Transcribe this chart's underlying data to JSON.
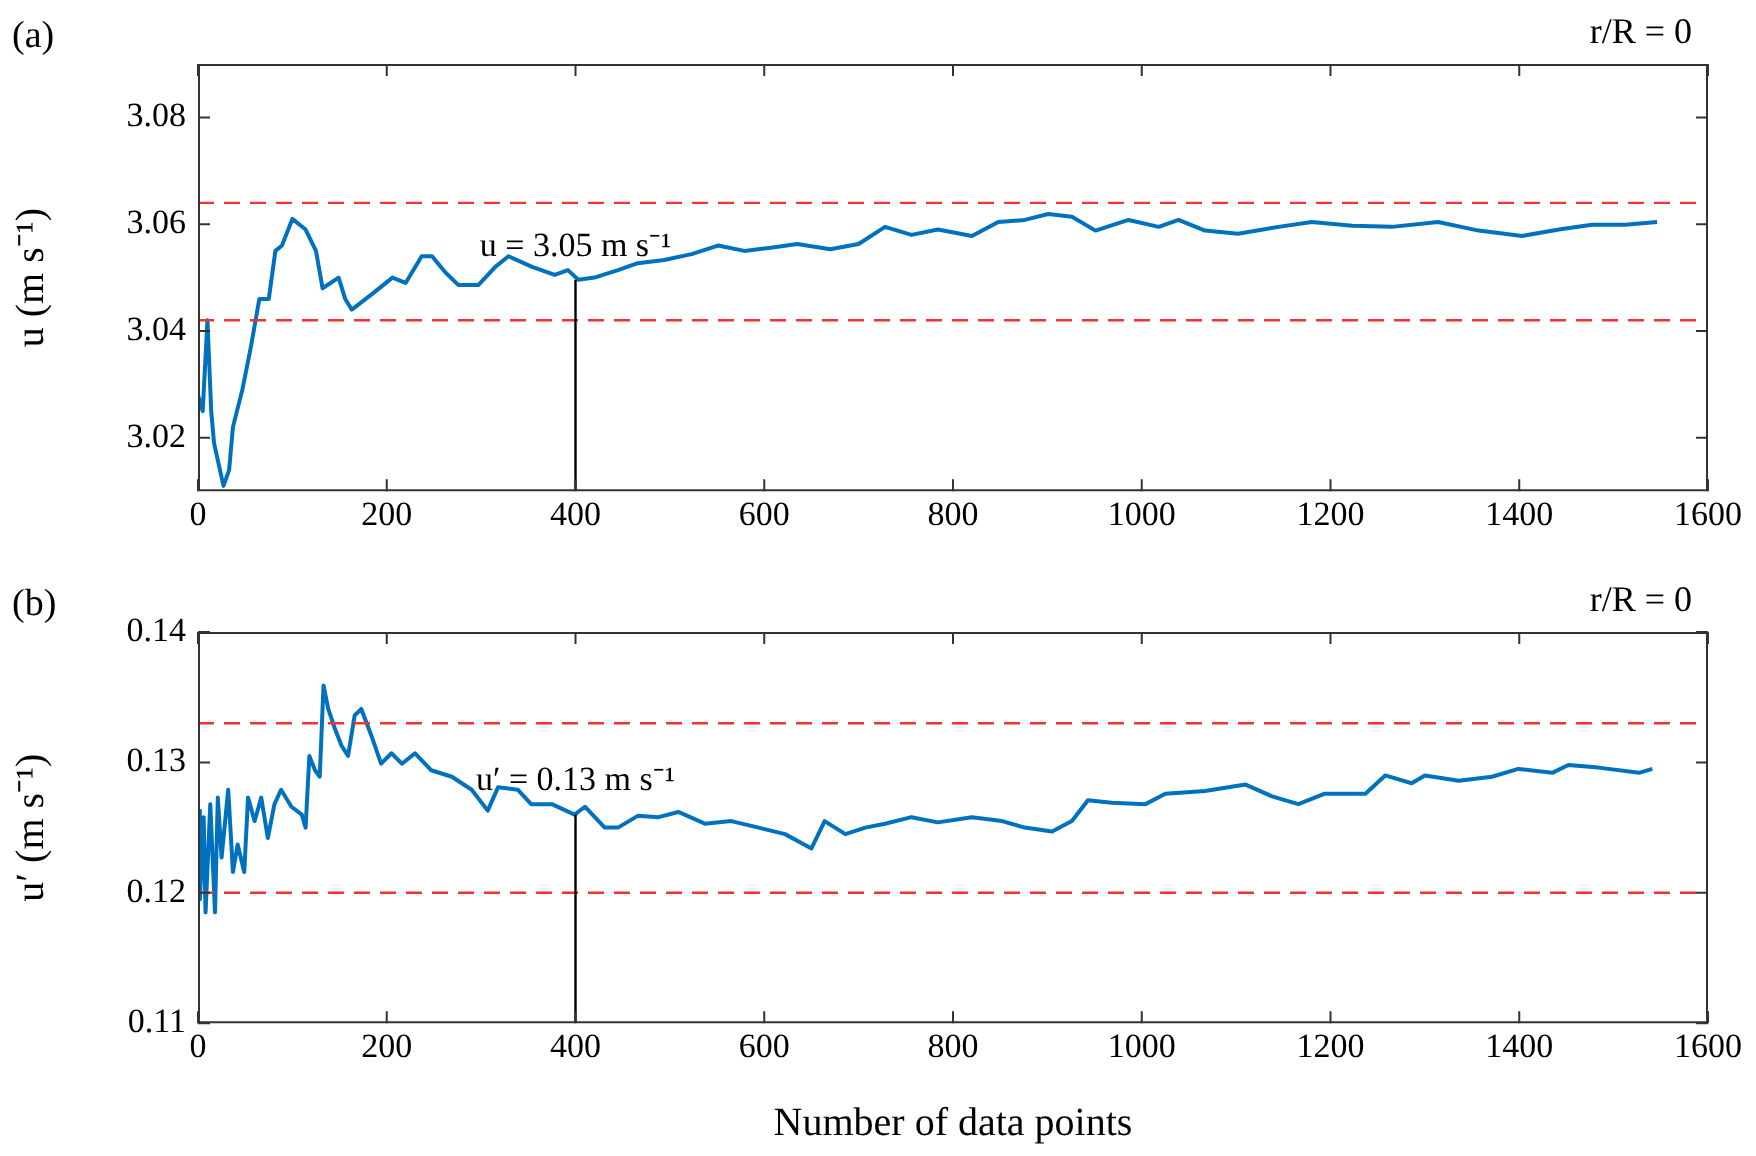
{
  "chart_data": [
    {
      "type": "line",
      "title": "(a)",
      "subtitle": "r/R = 0",
      "ylabel": "u (m s⁻¹)",
      "xlim": [
        0,
        1600
      ],
      "xticks": [
        0,
        200,
        400,
        600,
        800,
        1000,
        1200,
        1400,
        1600
      ],
      "ylim": [
        3.01,
        3.09
      ],
      "yticks": [
        3.02,
        3.04,
        3.06,
        3.08
      ],
      "grid": false,
      "legend": false,
      "marker": "none",
      "line_style": "solid",
      "x": [
        0,
        5,
        10,
        14,
        17,
        22,
        27,
        33,
        37,
        47,
        56,
        65,
        75,
        82,
        89,
        100,
        114,
        125,
        132,
        149,
        156,
        163,
        174,
        185,
        206,
        220,
        237,
        248,
        262,
        276,
        297,
        315,
        329,
        354,
        378,
        392,
        403,
        420,
        445,
        466,
        494,
        523,
        551,
        579,
        607,
        635,
        670,
        700,
        728,
        756,
        784,
        820,
        848,
        876,
        901,
        926,
        951,
        986,
        1018,
        1039,
        1067,
        1102,
        1145,
        1180,
        1223,
        1265,
        1314,
        1357,
        1403,
        1442,
        1477,
        1512,
        1546
      ],
      "series": [
        {
          "color": "#0072bd",
          "values": [
            3.028,
            3.025,
            3.042,
            3.025,
            3.019,
            3.015,
            3.011,
            3.014,
            3.022,
            3.029,
            3.037,
            3.046,
            3.046,
            3.055,
            3.056,
            3.061,
            3.059,
            3.055,
            3.048,
            3.05,
            3.046,
            3.044,
            3.0455,
            3.047,
            3.05,
            3.049,
            3.054,
            3.054,
            3.051,
            3.0486,
            3.0486,
            3.052,
            3.054,
            3.052,
            3.0505,
            3.0514,
            3.0496,
            3.05,
            3.0514,
            3.0527,
            3.0533,
            3.0544,
            3.056,
            3.055,
            3.0556,
            3.0563,
            3.0553,
            3.0563,
            3.0595,
            3.058,
            3.059,
            3.0578,
            3.0604,
            3.0608,
            3.0619,
            3.0614,
            3.0588,
            3.0608,
            3.0595,
            3.0608,
            3.0588,
            3.0582,
            3.0595,
            3.0604,
            3.0597,
            3.0595,
            3.0604,
            3.0588,
            3.0578,
            3.059,
            3.0599,
            3.0599,
            3.0604
          ]
        }
      ],
      "ref_lines": [
        {
          "axis": "y",
          "value": 3.064,
          "color": "#ee3333",
          "line_style": "dashed"
        },
        {
          "axis": "y",
          "value": 3.042,
          "color": "#ee3333",
          "line_style": "dashed"
        },
        {
          "axis": "x",
          "value": 400,
          "color": "#000000",
          "line_style": "solid"
        }
      ],
      "annotations": [
        {
          "text": "u = 3.05 m s⁻¹",
          "x": 400,
          "y": 3.0496
        }
      ]
    },
    {
      "type": "line",
      "title": "(b)",
      "subtitle": "r/R = 0",
      "xlabel": "Number of data points",
      "ylabel": "u′ (m s⁻¹)",
      "xlim": [
        0,
        1600
      ],
      "xticks": [
        0,
        200,
        400,
        600,
        800,
        1000,
        1200,
        1400,
        1600
      ],
      "ylim": [
        0.11,
        0.14
      ],
      "yticks": [
        0.11,
        0.12,
        0.13,
        0.14
      ],
      "grid": false,
      "legend": false,
      "marker": "none",
      "line_style": "solid",
      "x": [
        0,
        2,
        6,
        8,
        13,
        18,
        21,
        25,
        32,
        37,
        42,
        49,
        53,
        60,
        67,
        74,
        81,
        88,
        99,
        110,
        114,
        118,
        124,
        129,
        133,
        138,
        145,
        152,
        159,
        166,
        173,
        184,
        194,
        205,
        216,
        230,
        247,
        269,
        290,
        307,
        318,
        339,
        353,
        375,
        399,
        410,
        431,
        445,
        466,
        488,
        509,
        537,
        565,
        594,
        622,
        650,
        664,
        686,
        707,
        728,
        756,
        784,
        820,
        852,
        876,
        905,
        926,
        943,
        968,
        1004,
        1025,
        1067,
        1110,
        1138,
        1166,
        1194,
        1237,
        1258,
        1286,
        1300,
        1336,
        1371,
        1399,
        1435,
        1452,
        1484,
        1527,
        1541
      ],
      "series": [
        {
          "color": "#0072bd",
          "values": [
            0.1263,
            0.1195,
            0.1258,
            0.1185,
            0.1268,
            0.1185,
            0.1273,
            0.1227,
            0.1279,
            0.1216,
            0.1237,
            0.1216,
            0.1273,
            0.1255,
            0.1273,
            0.1242,
            0.1268,
            0.1279,
            0.1266,
            0.126,
            0.125,
            0.1305,
            0.1294,
            0.1289,
            0.1359,
            0.1341,
            0.1326,
            0.1313,
            0.1305,
            0.1336,
            0.1341,
            0.132,
            0.1299,
            0.1307,
            0.1299,
            0.1307,
            0.1294,
            0.1289,
            0.1279,
            0.1263,
            0.1281,
            0.1279,
            0.1268,
            0.1268,
            0.126,
            0.1266,
            0.125,
            0.125,
            0.1259,
            0.1258,
            0.1262,
            0.1253,
            0.1255,
            0.125,
            0.1245,
            0.1234,
            0.1255,
            0.1245,
            0.125,
            0.1253,
            0.1258,
            0.1254,
            0.1258,
            0.1255,
            0.125,
            0.1247,
            0.1255,
            0.1271,
            0.1269,
            0.1268,
            0.1276,
            0.1278,
            0.1283,
            0.1274,
            0.1268,
            0.1276,
            0.1276,
            0.129,
            0.1284,
            0.129,
            0.1286,
            0.1289,
            0.1295,
            0.1292,
            0.1298,
            0.1296,
            0.1292,
            0.1295
          ]
        }
      ],
      "ref_lines": [
        {
          "axis": "y",
          "value": 0.133,
          "color": "#ee3333",
          "line_style": "dashed"
        },
        {
          "axis": "y",
          "value": 0.12,
          "color": "#ee3333",
          "line_style": "dashed"
        },
        {
          "axis": "x",
          "value": 400,
          "color": "#000000",
          "line_style": "solid"
        }
      ],
      "annotations": [
        {
          "text": "u′ = 0.13 m s⁻¹",
          "x": 400,
          "y": 0.126
        }
      ]
    }
  ]
}
